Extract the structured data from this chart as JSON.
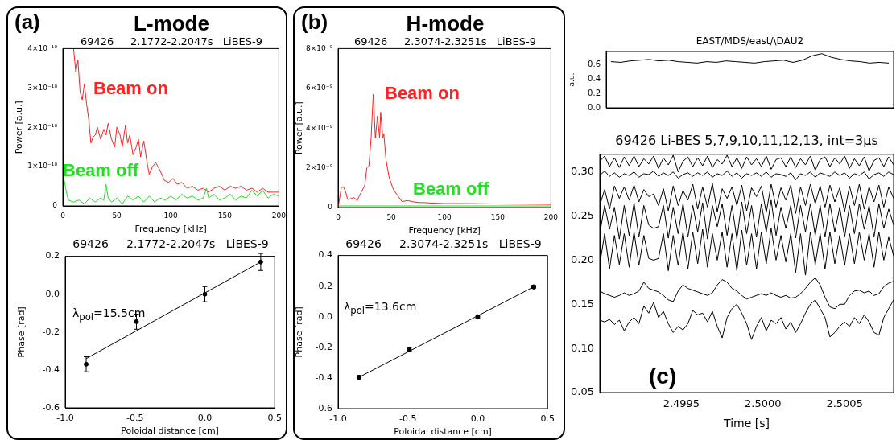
{
  "chart_data": [
    {
      "type": "line",
      "title": "L-mode",
      "subtitle": "69426     2.1772-2.2047s   LiBES-9",
      "xlabel": "Frequency [kHz]",
      "ylabel": "Power [a.u.]",
      "annotations": [
        "(a)"
      ],
      "xlim": [
        0,
        200
      ],
      "xticks": [
        0,
        50,
        100,
        150,
        200
      ],
      "ylim": [
        0,
        4e-10
      ],
      "yticks": [
        0,
        {
          "value": 1e-10,
          "label": "1×10⁻¹⁰"
        },
        {
          "value": 2e-10,
          "label": "2×10⁻¹⁰"
        },
        {
          "value": 3e-10,
          "label": "3×10⁻¹⁰"
        },
        {
          "value": 4e-10,
          "label": "4×10⁻¹⁰"
        }
      ],
      "series": [
        {
          "name": "Beam on",
          "color": "#ff2020",
          "x": [
            10,
            12,
            14,
            16,
            18,
            20,
            22,
            24,
            26,
            28,
            30,
            32,
            35,
            38,
            40,
            42,
            45,
            48,
            50,
            53,
            55,
            58,
            60,
            62,
            65,
            68,
            70,
            72,
            75,
            78,
            80,
            83,
            86,
            90,
            94,
            98,
            102,
            106,
            110,
            115,
            120,
            125,
            130,
            135,
            140,
            145,
            150,
            155,
            160,
            165,
            170,
            175,
            180,
            185,
            190,
            195,
            200
          ],
          "values": [
            4e-10,
            3.4e-10,
            3.7e-10,
            2.9e-10,
            2.7e-10,
            3.1e-10,
            2.6e-10,
            2.2e-10,
            1.6e-10,
            1.75e-10,
            1.8e-10,
            2e-10,
            1.7e-10,
            1.95e-10,
            1.8e-10,
            2.1e-10,
            1.7e-10,
            1.5e-10,
            2e-10,
            1.8e-10,
            1.5e-10,
            2.05e-10,
            1.6e-10,
            1.8e-10,
            1.3e-10,
            1.5e-10,
            1.7e-10,
            1.25e-10,
            1.65e-10,
            1.1e-10,
            8e-11,
            1e-10,
            1.1e-10,
            9e-11,
            6.5e-11,
            6e-11,
            7e-11,
            5.5e-11,
            6e-11,
            4.5e-11,
            5e-11,
            4e-11,
            4.5e-11,
            3.5e-11,
            4.5e-11,
            5e-11,
            4e-11,
            5e-11,
            4.5e-11,
            5e-11,
            4e-11,
            4.5e-11,
            3.5e-11,
            4.5e-11,
            3.5e-11,
            3.5e-11,
            3.5e-11
          ]
        },
        {
          "name": "Beam off",
          "color": "#20e020",
          "x": [
            1,
            3,
            5,
            10,
            15,
            20,
            25,
            30,
            35,
            38,
            40,
            42,
            45,
            50,
            55,
            60,
            65,
            70,
            75,
            80,
            85,
            90,
            95,
            100,
            105,
            110,
            115,
            120,
            125,
            130,
            133,
            135,
            140,
            145,
            150,
            155,
            160,
            165,
            170,
            175,
            180,
            185,
            190,
            195,
            200
          ],
          "values": [
            7e-11,
            4e-11,
            1.5e-11,
            1e-11,
            1.5e-11,
            5e-12,
            2e-11,
            1e-11,
            2e-11,
            1.5e-11,
            5.5e-11,
            2e-11,
            1e-11,
            2e-11,
            5e-12,
            2.5e-11,
            1.5e-11,
            2.5e-11,
            1e-11,
            2.5e-11,
            1e-11,
            2e-11,
            1.5e-11,
            2.5e-11,
            1.5e-11,
            3e-11,
            2e-11,
            2.5e-11,
            1.5e-11,
            2e-11,
            4.5e-11,
            2e-11,
            3e-11,
            1.5e-11,
            2e-11,
            3e-11,
            1.5e-11,
            2.5e-11,
            2e-11,
            4e-11,
            2.5e-11,
            4e-11,
            2e-11,
            3e-11,
            2.5e-11
          ]
        }
      ]
    },
    {
      "type": "scatter",
      "title": "69426     2.1772-2.2047s   LiBES-9",
      "xlabel": "Poloidal distance [cm]",
      "ylabel": "Phase [rad]",
      "annotations": [
        "λ$_{pol}$=15.5cm"
      ],
      "xlim": [
        -1,
        0.5
      ],
      "xticks": [
        {
          "value": -1,
          "label": "-1.0"
        },
        {
          "value": -0.5,
          "label": "-0.5"
        },
        {
          "value": 0,
          "label": "0.0"
        },
        0.5
      ],
      "ylim": [
        -0.6,
        0.2
      ],
      "yticks": [
        {
          "value": -0.6,
          "label": "-0.6"
        },
        {
          "value": -0.4,
          "label": "-0.4"
        },
        {
          "value": -0.2,
          "label": "-0.2"
        },
        {
          "value": 0,
          "label": "0.0"
        },
        0.2
      ],
      "series": [
        {
          "color": "#000000",
          "marker": "circle",
          "x": [
            -0.85,
            -0.49,
            0,
            0.4
          ],
          "values": [
            -0.37,
            -0.145,
            0,
            0.17
          ],
          "errors": [
            0.04,
            0.04,
            0.04,
            0.045
          ]
        },
        {
          "type": "line",
          "color": "#000000",
          "x": [
            -0.85,
            0.4
          ],
          "values": [
            -0.34,
            0.17
          ]
        }
      ]
    },
    {
      "type": "line",
      "title": "H-mode",
      "subtitle": "69426     2.3074-2.3251s   LiBES-9",
      "xlabel": "Frequency [kHz]",
      "ylabel": "Power [a.u.]",
      "annotations": [
        "(b)"
      ],
      "xlim": [
        0,
        200
      ],
      "xticks": [
        0,
        50,
        100,
        150,
        200
      ],
      "ylim": [
        0,
        8e-09
      ],
      "yticks": [
        0,
        {
          "value": 2e-09,
          "label": "2×10⁻⁹"
        },
        {
          "value": 4e-09,
          "label": "4×10⁻⁹"
        },
        {
          "value": 6e-09,
          "label": "6×10⁻⁹"
        },
        {
          "value": 8e-09,
          "label": "8×10⁻⁹"
        }
      ],
      "series": [
        {
          "name": "Beam on",
          "color": "#ff2020",
          "x": [
            0,
            3,
            5,
            7,
            9,
            12,
            15,
            18,
            20,
            22,
            25,
            27,
            29,
            31,
            33,
            35,
            37,
            39,
            40,
            42,
            43,
            45,
            48,
            52,
            56,
            60,
            65,
            70,
            75,
            80,
            90,
            100,
            120,
            150,
            200
          ],
          "values": [
            0,
            1e-09,
            1.05e-09,
            8e-10,
            4e-10,
            4.5e-10,
            5e-10,
            3.5e-10,
            6e-10,
            8e-10,
            1.1e-09,
            2e-09,
            2.1e-09,
            3.5e-09,
            5.7e-09,
            3.5e-09,
            4.6e-09,
            3.5e-09,
            4.8e-09,
            3.5e-09,
            3.7e-09,
            2.4e-09,
            1.5e-09,
            9e-10,
            6e-10,
            3e-10,
            3.5e-10,
            3e-10,
            2.5e-10,
            2.5e-10,
            2.2e-10,
            2e-10,
            2e-10,
            1.8e-10,
            1.6e-10
          ]
        },
        {
          "name": "Beam off",
          "color": "#20e020",
          "x": [
            0,
            50,
            100,
            150,
            200
          ],
          "values": [
            8e-11,
            8e-11,
            8e-11,
            8e-11,
            8e-11
          ]
        }
      ]
    },
    {
      "type": "scatter",
      "title": "69426     2.3074-2.3251s   LiBES-9",
      "xlabel": "Poloidal distance [cm]",
      "ylabel": "Phase [rad]",
      "annotations": [
        "λ$_{pol}$=13.6cm"
      ],
      "xlim": [
        -1,
        0.5
      ],
      "xticks": [
        {
          "value": -1,
          "label": "-1.0"
        },
        {
          "value": -0.5,
          "label": "-0.5"
        },
        {
          "value": 0,
          "label": "0.0"
        },
        0.5
      ],
      "ylim": [
        -0.6,
        0.4
      ],
      "yticks": [
        {
          "value": -0.6,
          "label": "-0.6"
        },
        {
          "value": -0.4,
          "label": "-0.4"
        },
        {
          "value": -0.2,
          "label": "-0.2"
        },
        {
          "value": 0,
          "label": "0.0"
        },
        0.2,
        0.4
      ],
      "series": [
        {
          "color": "#000000",
          "marker": "circle",
          "x": [
            -0.85,
            -0.49,
            0,
            0.4
          ],
          "values": [
            -0.395,
            -0.215,
            0,
            0.195
          ],
          "errors": [
            0.01,
            0.01,
            0.01,
            0.01
          ]
        },
        {
          "type": "line",
          "marker": "circle",
          "color": "#000000",
          "x": [
            -0.85,
            0.4
          ],
          "values": [
            -0.395,
            0.195
          ]
        }
      ]
    },
    {
      "type": "line",
      "title": "EAST/MDS/east/\\DAU2",
      "ylabel": "a.u.",
      "tick_labels": "y",
      "ylim": [
        0,
        0.78
      ],
      "yticks": [
        {
          "value": 0,
          "label": "0.0"
        },
        0.2,
        0.4,
        0.6
      ],
      "categories": [
        null,
        null,
        null,
        null,
        null,
        null,
        null,
        null,
        null,
        null,
        null,
        null,
        null,
        null,
        null,
        null,
        null,
        null,
        null,
        null,
        null,
        null,
        null,
        null,
        null,
        null,
        null,
        null,
        null,
        null
      ],
      "series": [
        {
          "color": "#000000",
          "values": [
            0.64,
            0.63,
            0.65,
            0.66,
            0.67,
            0.65,
            0.66,
            0.64,
            0.63,
            0.62,
            0.64,
            0.63,
            0.65,
            0.64,
            0.63,
            0.62,
            0.64,
            0.65,
            0.66,
            0.63,
            0.66,
            0.72,
            0.75,
            0.7,
            0.67,
            0.65,
            0.64,
            0.62,
            0.63,
            0.62
          ]
        }
      ]
    },
    {
      "type": "line",
      "title": "69426 Li-BES 5,7,9,10,11,12,13, int=3μs",
      "xlabel": "Time [s]",
      "annotations": [
        "(c)"
      ],
      "xlim": [
        2.499,
        2.5008
      ],
      "xticks": [
        2.4995,
        {
          "value": 2.5,
          "label": "2.5000"
        },
        2.5005
      ],
      "ylim": [
        0.05,
        0.32
      ],
      "yticks": [
        0.05,
        {
          "value": 0.1,
          "label": "0.10"
        },
        0.15,
        {
          "value": 0.2,
          "label": "0.20"
        },
        0.25,
        {
          "value": 0.3,
          "label": "0.30"
        }
      ],
      "x": [
        2.499,
        2.49903,
        2.49906,
        2.49909,
        2.49912,
        2.49915,
        2.49918,
        2.49921,
        2.49924,
        2.49927,
        2.4993,
        2.49933,
        2.49936,
        2.49939,
        2.49942,
        2.49945,
        2.49948,
        2.49951,
        2.49954,
        2.49957,
        2.4996,
        2.49963,
        2.49966,
        2.49969,
        2.49972,
        2.49975,
        2.49978,
        2.49981,
        2.49984,
        2.49987,
        2.4999,
        2.49993,
        2.49996,
        2.49999,
        2.50002,
        2.50005,
        2.50008,
        2.50011,
        2.50014,
        2.50017,
        2.5002,
        2.50023,
        2.50026,
        2.50029,
        2.50032,
        2.50035,
        2.50038,
        2.50041,
        2.50044,
        2.50047,
        2.5005,
        2.50053,
        2.50056,
        2.50059,
        2.50062,
        2.50065,
        2.50068,
        2.50071,
        2.50074,
        2.50077,
        2.5008
      ],
      "series": [
        {
          "color": "#000000",
          "values": [
            0.312,
            0.318,
            0.306,
            0.316,
            0.305,
            0.317,
            0.307,
            0.318,
            0.306,
            0.315,
            0.309,
            0.318,
            0.304,
            0.316,
            0.308,
            0.319,
            0.3,
            0.312,
            0.317,
            0.306,
            0.316,
            0.307,
            0.318,
            0.305,
            0.314,
            0.309,
            0.319,
            0.306,
            0.316,
            0.304,
            0.317,
            0.308,
            0.315,
            0.306,
            0.318,
            0.303,
            0.314,
            0.316,
            0.306,
            0.317,
            0.305,
            0.315,
            0.308,
            0.318,
            0.302,
            0.314,
            0.317,
            0.306,
            0.316,
            0.309,
            0.318,
            0.304,
            0.315,
            0.307,
            0.317,
            0.301,
            0.313,
            0.316,
            0.306,
            0.317,
            0.308
          ]
        },
        {
          "color": "#000000",
          "values": [
            0.296,
            0.301,
            0.295,
            0.299,
            0.294,
            0.298,
            0.296,
            0.3,
            0.294,
            0.298,
            0.297,
            0.301,
            0.295,
            0.299,
            0.296,
            0.3,
            0.293,
            0.297,
            0.299,
            0.295,
            0.299,
            0.296,
            0.3,
            0.294,
            0.298,
            0.296,
            0.301,
            0.295,
            0.299,
            0.293,
            0.298,
            0.296,
            0.299,
            0.295,
            0.3,
            0.294,
            0.298,
            0.297,
            0.295,
            0.299,
            0.291,
            0.298,
            0.296,
            0.3,
            0.294,
            0.299,
            0.297,
            0.295,
            0.3,
            0.296,
            0.299,
            0.293,
            0.298,
            0.296,
            0.3,
            0.292,
            0.297,
            0.299,
            0.295,
            0.3,
            0.297
          ]
        },
        {
          "color": "#000000",
          "values": [
            0.262,
            0.28,
            0.258,
            0.284,
            0.27,
            0.283,
            0.268,
            0.285,
            0.266,
            0.28,
            0.272,
            0.275,
            0.262,
            0.281,
            0.256,
            0.284,
            0.262,
            0.279,
            0.268,
            0.286,
            0.258,
            0.283,
            0.26,
            0.287,
            0.255,
            0.281,
            0.27,
            0.283,
            0.262,
            0.285,
            0.256,
            0.282,
            0.272,
            0.284,
            0.254,
            0.286,
            0.26,
            0.282,
            0.268,
            0.285,
            0.253,
            0.283,
            0.262,
            0.286,
            0.264,
            0.284,
            0.26,
            0.285,
            0.266,
            0.282,
            0.255,
            0.284,
            0.262,
            0.286,
            0.258,
            0.283,
            0.266,
            0.285,
            0.26,
            0.283,
            0.27
          ]
        },
        {
          "color": "#000000",
          "values": [
            0.23,
            0.262,
            0.235,
            0.26,
            0.224,
            0.262,
            0.228,
            0.265,
            0.226,
            0.262,
            0.24,
            0.236,
            0.238,
            0.262,
            0.225,
            0.26,
            0.23,
            0.264,
            0.226,
            0.262,
            0.232,
            0.265,
            0.224,
            0.262,
            0.238,
            0.264,
            0.228,
            0.262,
            0.224,
            0.266,
            0.23,
            0.262,
            0.226,
            0.264,
            0.232,
            0.268,
            0.228,
            0.26,
            0.236,
            0.262,
            0.225,
            0.262,
            0.232,
            0.264,
            0.228,
            0.262,
            0.226,
            0.264,
            0.232,
            0.26,
            0.226,
            0.262,
            0.23,
            0.264,
            0.235,
            0.262,
            0.226,
            0.264,
            0.236,
            0.258,
            0.24
          ]
        },
        {
          "color": "#000000",
          "values": [
            0.195,
            0.23,
            0.19,
            0.228,
            0.195,
            0.23,
            0.192,
            0.232,
            0.194,
            0.228,
            0.202,
            0.2,
            0.202,
            0.23,
            0.188,
            0.228,
            0.194,
            0.232,
            0.19,
            0.232,
            0.196,
            0.235,
            0.192,
            0.23,
            0.2,
            0.232,
            0.192,
            0.23,
            0.188,
            0.234,
            0.194,
            0.23,
            0.19,
            0.232,
            0.196,
            0.236,
            0.2,
            0.228,
            0.198,
            0.23,
            0.186,
            0.23,
            0.183,
            0.232,
            0.195,
            0.23,
            0.19,
            0.232,
            0.196,
            0.228,
            0.194,
            0.23,
            0.196,
            0.232,
            0.2,
            0.23,
            0.192,
            0.232,
            0.2,
            0.226,
            0.205
          ]
        },
        {
          "color": "#000000",
          "values": [
            0.165,
            0.162,
            0.16,
            0.158,
            0.16,
            0.163,
            0.16,
            0.162,
            0.165,
            0.175,
            0.168,
            0.166,
            0.164,
            0.16,
            0.155,
            0.153,
            0.165,
            0.172,
            0.168,
            0.166,
            0.164,
            0.162,
            0.16,
            0.163,
            0.172,
            0.178,
            0.175,
            0.168,
            0.165,
            0.16,
            0.156,
            0.158,
            0.16,
            0.162,
            0.16,
            0.163,
            0.16,
            0.158,
            0.16,
            0.157,
            0.158,
            0.162,
            0.168,
            0.175,
            0.18,
            0.172,
            0.158,
            0.147,
            0.145,
            0.15,
            0.15,
            0.16,
            0.165,
            0.166,
            0.163,
            0.165,
            0.16,
            0.162,
            0.17,
            0.174,
            0.176
          ]
        },
        {
          "color": "#000000",
          "values": [
            0.132,
            0.13,
            0.133,
            0.127,
            0.132,
            0.12,
            0.13,
            0.135,
            0.128,
            0.148,
            0.14,
            0.152,
            0.135,
            0.142,
            0.128,
            0.118,
            0.125,
            0.121,
            0.128,
            0.143,
            0.138,
            0.14,
            0.13,
            0.142,
            0.125,
            0.112,
            0.135,
            0.145,
            0.15,
            0.14,
            0.128,
            0.11,
            0.125,
            0.135,
            0.12,
            0.132,
            0.128,
            0.135,
            0.122,
            0.13,
            0.118,
            0.128,
            0.14,
            0.15,
            0.155,
            0.145,
            0.135,
            0.113,
            0.118,
            0.125,
            0.13,
            0.125,
            0.135,
            0.128,
            0.138,
            0.13,
            0.118,
            0.115,
            0.135,
            0.145,
            0.155
          ]
        }
      ]
    }
  ]
}
